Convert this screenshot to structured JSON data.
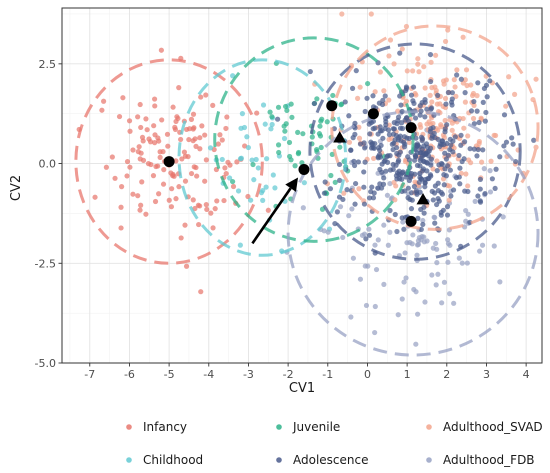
{
  "chart_data": {
    "type": "scatter",
    "title": "",
    "xlabel": "CV1",
    "ylabel": "CV2",
    "xlim": [
      -7.7,
      4.4
    ],
    "ylim": [
      -5.0,
      3.9
    ],
    "xticks": [
      -7,
      -6,
      -5,
      -4,
      -3,
      -2,
      -1,
      0,
      1,
      2,
      3,
      4
    ],
    "yticks": [
      -5.0,
      -2.5,
      0.0,
      2.5
    ],
    "ytick_labels": [
      "-5.0",
      "-2.5",
      "0.0",
      "2.5"
    ],
    "grid": true,
    "legend_position": "bottom",
    "legend_labels": [
      "Infancy",
      "Juvenile",
      "Adulthood_SVAD",
      "Childhood",
      "Adolescence",
      "Adulthood_FDB"
    ],
    "series": [
      {
        "name": "Infancy",
        "color": "#E8776D",
        "ellipse": {
          "cx": -5.0,
          "cy": 0.05,
          "rx": 2.35,
          "ry": 2.55
        },
        "n_points": 150,
        "spread": [
          0.85,
          0.9
        ]
      },
      {
        "name": "Childhood",
        "color": "#62C9D2",
        "ellipse": {
          "cx": -2.65,
          "cy": 0.15,
          "rx": 2.1,
          "ry": 2.45
        },
        "n_points": 40,
        "spread": [
          0.7,
          0.8
        ]
      },
      {
        "name": "Juvenile",
        "color": "#2EB38A",
        "ellipse": {
          "cx": -1.35,
          "cy": 0.6,
          "rx": 2.5,
          "ry": 2.55
        },
        "n_points": 60,
        "spread": [
          0.7,
          0.75
        ]
      },
      {
        "name": "Adolescence",
        "color": "#4A5B8C",
        "ellipse": {
          "cx": 1.2,
          "cy": 0.3,
          "rx": 2.65,
          "ry": 2.7
        },
        "n_points": 420,
        "spread": [
          1.0,
          0.95
        ]
      },
      {
        "name": "Adulthood_SVAD",
        "color": "#F3A48C",
        "ellipse": {
          "cx": 1.7,
          "cy": 0.9,
          "rx": 2.6,
          "ry": 2.55
        },
        "n_points": 220,
        "spread": [
          1.0,
          0.9
        ]
      },
      {
        "name": "Adulthood_FDB",
        "color": "#98A2C4",
        "ellipse": {
          "cx": 1.15,
          "cy": -1.75,
          "rx": 3.15,
          "ry": 3.05
        },
        "n_points": 120,
        "spread": [
          1.05,
          1.1
        ]
      }
    ],
    "centroids": [
      {
        "x": -5.0,
        "y": 0.05,
        "shape": "circle"
      },
      {
        "x": -1.6,
        "y": -0.15,
        "shape": "circle"
      },
      {
        "x": -0.9,
        "y": 1.45,
        "shape": "circle"
      },
      {
        "x": 0.15,
        "y": 1.25,
        "shape": "circle"
      },
      {
        "x": 1.1,
        "y": 0.9,
        "shape": "circle"
      },
      {
        "x": 1.1,
        "y": -1.45,
        "shape": "circle"
      },
      {
        "x": -0.7,
        "y": 0.65,
        "shape": "triangle"
      },
      {
        "x": 1.4,
        "y": -0.9,
        "shape": "triangle"
      }
    ],
    "arrow": {
      "from": [
        -2.9,
        -2.0
      ],
      "to": [
        -1.75,
        -0.35
      ]
    }
  }
}
